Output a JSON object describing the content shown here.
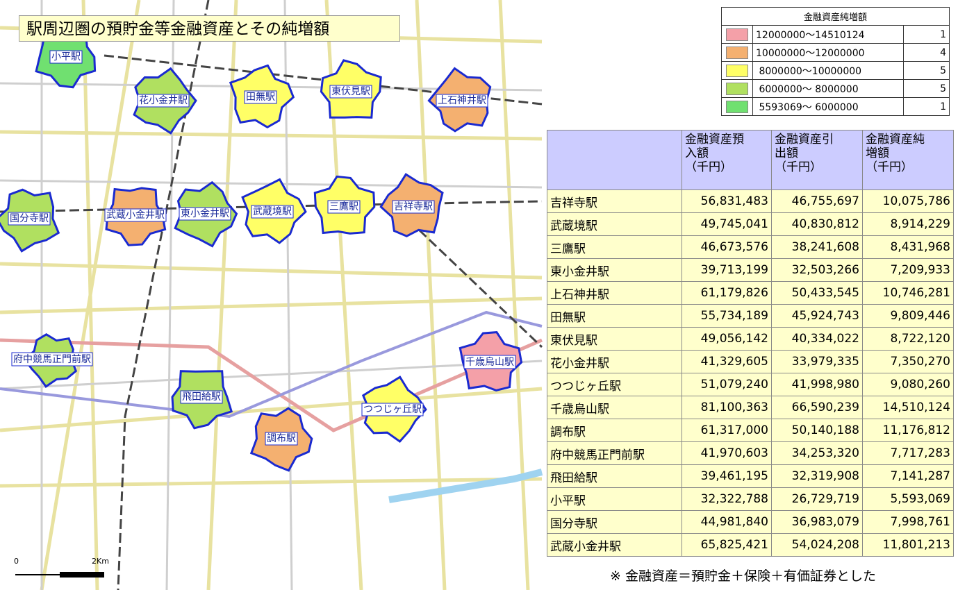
{
  "title": "駅周辺圏の預貯金等金融資産とその純増額",
  "legend": {
    "title": "金融資産純増額",
    "items": [
      {
        "label": "12000000～14510124",
        "count": 1,
        "color": "#f4a0a8"
      },
      {
        "label": "10000000～12000000",
        "count": 4,
        "color": "#f4b070"
      },
      {
        "label": " 8000000～10000000",
        "count": 5,
        "color": "#ffff66"
      },
      {
        "label": " 6000000～ 8000000",
        "count": 5,
        "color": "#b0e060"
      },
      {
        "label": " 5593069～ 6000000",
        "count": 1,
        "color": "#70e070"
      }
    ]
  },
  "map": {
    "stations": [
      {
        "name": "小平駅",
        "color": "#70e070"
      },
      {
        "name": "花小金井駅",
        "color": "#b0e060"
      },
      {
        "name": "田無駅",
        "color": "#ffff66"
      },
      {
        "name": "東伏見駅",
        "color": "#ffff66"
      },
      {
        "name": "上石神井駅",
        "color": "#f4b070"
      },
      {
        "name": "国分寺駅",
        "color": "#b0e060"
      },
      {
        "name": "武蔵小金井駅",
        "color": "#f4b070"
      },
      {
        "name": "東小金井駅",
        "color": "#b0e060"
      },
      {
        "name": "武蔵境駅",
        "color": "#ffff66"
      },
      {
        "name": "三鷹駅",
        "color": "#ffff66"
      },
      {
        "name": "吉祥寺駅",
        "color": "#f4b070"
      },
      {
        "name": "府中競馬正門前駅",
        "color": "#b0e060"
      },
      {
        "name": "飛田給駅",
        "color": "#b0e060"
      },
      {
        "name": "調布駅",
        "color": "#f4b070"
      },
      {
        "name": "つつじヶ丘駅",
        "color": "#ffff66"
      },
      {
        "name": "千歳烏山駅",
        "color": "#f4a0a8"
      }
    ]
  },
  "table": {
    "header": [
      [],
      [
        "金融資産預",
        "入額",
        "（千円）"
      ],
      [
        "金融資産引",
        "出額",
        "（千円）"
      ],
      [
        "金融資産純",
        "増額",
        "（千円）"
      ]
    ],
    "rows": [
      [
        "吉祥寺駅",
        "56,831,483",
        "46,755,697",
        "10,075,786"
      ],
      [
        "武蔵境駅",
        "49,745,041",
        "40,830,812",
        "8,914,229"
      ],
      [
        "三鷹駅",
        "46,673,576",
        "38,241,608",
        "8,431,968"
      ],
      [
        "東小金井駅",
        "39,713,199",
        "32,503,266",
        "7,209,933"
      ],
      [
        "上石神井駅",
        "61,179,826",
        "50,433,545",
        "10,746,281"
      ],
      [
        "田無駅",
        "55,734,189",
        "45,924,743",
        "9,809,446"
      ],
      [
        "東伏見駅",
        "49,056,142",
        "40,334,022",
        "8,722,120"
      ],
      [
        "花小金井駅",
        "41,329,605",
        "33,979,335",
        "7,350,270"
      ],
      [
        "つつじヶ丘駅",
        "51,079,240",
        "41,998,980",
        "9,080,260"
      ],
      [
        "千歳烏山駅",
        "81,100,363",
        "66,590,239",
        "14,510,124"
      ],
      [
        "調布駅",
        "61,317,000",
        "50,140,188",
        "11,176,812"
      ],
      [
        "府中競馬正門前駅",
        "41,970,603",
        "34,253,320",
        "7,717,283"
      ],
      [
        "飛田給駅",
        "39,461,195",
        "32,319,908",
        "7,141,287"
      ],
      [
        "小平駅",
        "32,322,788",
        "26,729,719",
        "5,593,069"
      ],
      [
        "国分寺駅",
        "44,981,840",
        "36,983,079",
        "7,998,761"
      ],
      [
        "武蔵小金井駅",
        "65,825,421",
        "54,024,208",
        "11,801,213"
      ]
    ]
  },
  "footnote": "※ 金融資産＝預貯金＋保険＋有価証券とした",
  "scale": [
    "0",
    "2Km"
  ]
}
